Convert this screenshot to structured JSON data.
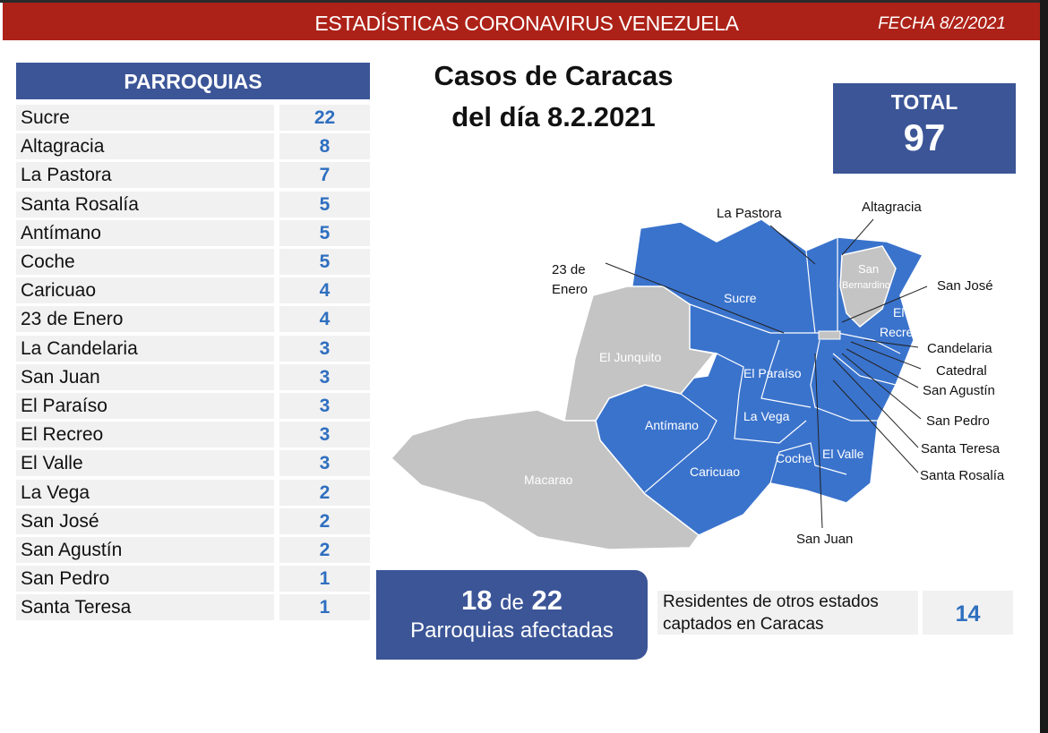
{
  "header": {
    "title": "ESTADÍSTICAS CORONAVIRUS VENEZUELA",
    "date": "FECHA 8/2/2021"
  },
  "table": {
    "header": "PARROQUIAS",
    "rows": [
      {
        "name": "Sucre",
        "value": "22"
      },
      {
        "name": "Altagracia",
        "value": "8"
      },
      {
        "name": "La Pastora",
        "value": "7"
      },
      {
        "name": "Santa Rosalía",
        "value": "5"
      },
      {
        "name": "Antímano",
        "value": "5"
      },
      {
        "name": "Coche",
        "value": "5"
      },
      {
        "name": "Caricuao",
        "value": "4"
      },
      {
        "name": "23 de Enero",
        "value": "4"
      },
      {
        "name": "La Candelaria",
        "value": "3"
      },
      {
        "name": "San Juan",
        "value": "3"
      },
      {
        "name": "El Paraíso",
        "value": "3"
      },
      {
        "name": "El Recreo",
        "value": "3"
      },
      {
        "name": "El Valle",
        "value": "3"
      },
      {
        "name": "La Vega",
        "value": "2"
      },
      {
        "name": "San José",
        "value": "2"
      },
      {
        "name": "San Agustín",
        "value": "2"
      },
      {
        "name": "San Pedro",
        "value": "1"
      },
      {
        "name": "Santa Teresa",
        "value": "1"
      }
    ]
  },
  "main_title": {
    "line1": "Casos de Caracas",
    "line2": "del día 8.2.2021"
  },
  "total": {
    "label": "TOTAL",
    "value": "97"
  },
  "affected": {
    "count": "18",
    "de": "de",
    "of": "22",
    "label": "Parroquias afectadas"
  },
  "residents": {
    "label_line1": "Residentes de otros estados",
    "label_line2": "captados en Caracas",
    "value": "14"
  },
  "map": {
    "colors": {
      "affected": "#3a73cc",
      "unaffected": "#c4c4c4"
    },
    "labels": {
      "la_pastora": "La Pastora",
      "altagracia": "Altagracia",
      "enero1": "23 de",
      "enero2": "Enero",
      "sucre": "Sucre",
      "san": "San",
      "bernardino": "Bernardino",
      "san_jose": "San José",
      "el": "El",
      "recreo": "Recreo",
      "candelaria": "Candelaria",
      "catedral": "Catedral",
      "san_agustin": "San Agustín",
      "san_pedro": "San Pedro",
      "santa_teresa": "Santa Teresa",
      "santa_rosalia": "Santa Rosalía",
      "el_junquito": "El Junquito",
      "el_paraiso": "El Paraíso",
      "antimano": "Antímano",
      "la_vega": "La Vega",
      "macarao": "Macarao",
      "caricuao": "Caricuao",
      "coche": "Coche",
      "el_valle": "El Valle",
      "san_juan": "San Juan"
    }
  }
}
